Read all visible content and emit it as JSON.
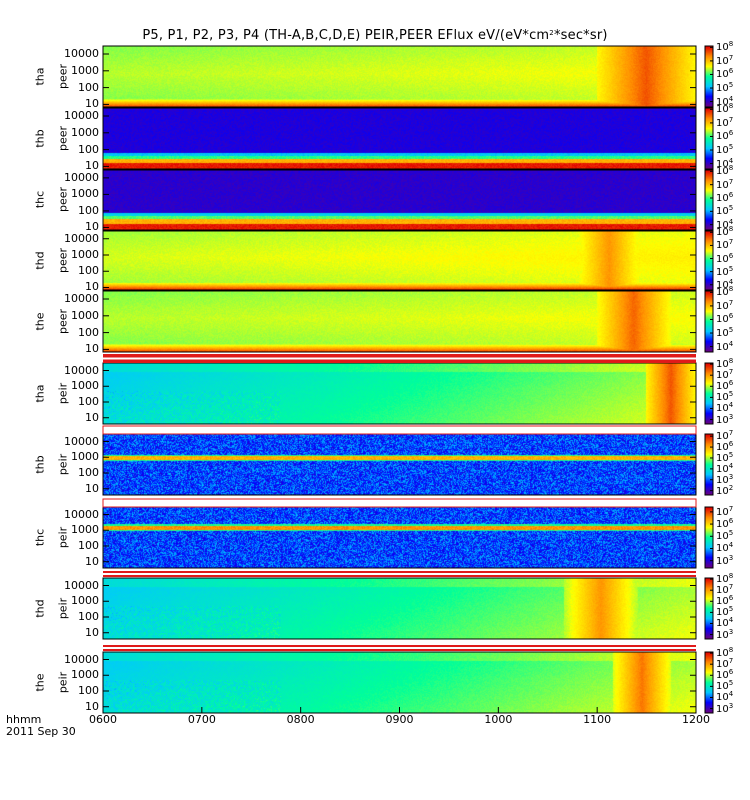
{
  "title": {
    "prefix": "P5, P1, P2, P3, P4 (TH-A,B,C,D,E) PEIR,PEER EFlux eV/(eV*cm",
    "sup": "2",
    "suffix": "*sec*sr)"
  },
  "x_corner": {
    "line1": "hhmm",
    "line2": "2011 Sep 30"
  },
  "colors": {
    "colormap": [
      "#6a0080",
      "#0000ff",
      "#00c8ff",
      "#00ff9a",
      "#ffff00",
      "#ff8c00",
      "#e00000"
    ],
    "separator_red": "#e01a1a"
  },
  "chart_data": {
    "type": "heatmap",
    "x": {
      "label": "hhmm",
      "date": "2011 Sep 30",
      "ticks": [
        "0600",
        "0700",
        "0800",
        "0900",
        "1000",
        "1100",
        "1200"
      ],
      "range": [
        "0600",
        "1200"
      ]
    },
    "y_scale": "log",
    "panels": [
      {
        "probe_label": "tha",
        "instrument_label": "peer",
        "name": "tha peer",
        "y_ticks": [
          "10000",
          "1000",
          "100",
          "10"
        ],
        "y_range": [
          7,
          30000
        ],
        "colorbar_exponents": [
          "8",
          "7",
          "6",
          "5",
          "4"
        ],
        "colorbar_range_log": [
          3.6,
          8.1
        ],
        "pattern": "smooth",
        "base_level": [
          0.62,
          0.47,
          0.27
        ],
        "hot_regions": [
          {
            "start": "1100",
            "end": "1200",
            "level": 0.9
          }
        ]
      },
      {
        "probe_label": "thb",
        "instrument_label": "peer",
        "name": "thb peer",
        "y_ticks": [
          "10000",
          "1000",
          "100",
          "10"
        ],
        "y_range": [
          7,
          30000
        ],
        "colorbar_exponents": [
          "8",
          "7",
          "6",
          "5",
          "4"
        ],
        "colorbar_range_log": [
          3.6,
          8.1
        ],
        "pattern": "bands",
        "bands": [
          {
            "y_low": 7,
            "y_high": 16,
            "level": 0.97
          },
          {
            "y_low": 16,
            "y_high": 28,
            "level": 0.78
          },
          {
            "y_low": 28,
            "y_high": 40,
            "level": 0.52
          },
          {
            "y_low": 40,
            "y_high": 60,
            "level": 0.34
          },
          {
            "y_low": 60,
            "y_high": 30000,
            "level": 0.12
          }
        ]
      },
      {
        "probe_label": "thc",
        "instrument_label": "peer",
        "name": "thc peer",
        "y_ticks": [
          "10000",
          "1000",
          "100",
          "10"
        ],
        "y_range": [
          7,
          30000
        ],
        "colorbar_exponents": [
          "8",
          "7",
          "6",
          "5",
          "4"
        ],
        "colorbar_range_log": [
          3.6,
          8.1
        ],
        "pattern": "bands",
        "bands": [
          {
            "y_low": 7,
            "y_high": 16,
            "level": 0.97
          },
          {
            "y_low": 16,
            "y_high": 30,
            "level": 0.78
          },
          {
            "y_low": 30,
            "y_high": 45,
            "level": 0.55
          },
          {
            "y_low": 45,
            "y_high": 70,
            "level": 0.36
          },
          {
            "y_low": 70,
            "y_high": 30000,
            "level": 0.1
          }
        ]
      },
      {
        "probe_label": "thd",
        "instrument_label": "peer",
        "name": "thd peer",
        "y_ticks": [
          "10000",
          "1000",
          "100",
          "10"
        ],
        "y_range": [
          7,
          30000
        ],
        "colorbar_exponents": [
          "8",
          "7",
          "6",
          "5",
          "4"
        ],
        "colorbar_range_log": [
          3.6,
          8.1
        ],
        "pattern": "smooth",
        "base_level": [
          0.64,
          0.55,
          0.6
        ],
        "hot_regions": [
          {
            "start": "1045",
            "end": "1130",
            "level": 0.82
          }
        ]
      },
      {
        "probe_label": "the",
        "instrument_label": "peer",
        "name": "the peer",
        "y_ticks": [
          "10000",
          "1000",
          "100",
          "10"
        ],
        "y_range": [
          7,
          30000
        ],
        "colorbar_exponents": [
          "8",
          "7",
          "6",
          "5",
          "4"
        ],
        "colorbar_range_log": [
          3.6,
          8.1
        ],
        "pattern": "smooth",
        "base_level": [
          0.62,
          0.55,
          0.55
        ],
        "hot_regions": [
          {
            "start": "1100",
            "end": "1145",
            "level": 0.88
          }
        ]
      },
      {
        "probe_label": "tha",
        "instrument_label": "peir",
        "name": "tha peir",
        "y_ticks": [
          "10000",
          "1000",
          "100",
          "10"
        ],
        "y_range": [
          4,
          30000
        ],
        "colorbar_exponents": [
          "8",
          "7",
          "6",
          "5",
          "4",
          "3"
        ],
        "colorbar_range_log": [
          2.6,
          8.1
        ],
        "pattern": "ions",
        "base_level": [
          0.4,
          0.43,
          0.6
        ],
        "hot_regions": [
          {
            "start": "1130",
            "end": "1200",
            "level": 0.9
          }
        ]
      },
      {
        "probe_label": "thb",
        "instrument_label": "peir",
        "name": "thb peir",
        "y_ticks": [
          "10000",
          "1000",
          "100",
          "10"
        ],
        "y_range": [
          4,
          30000
        ],
        "colorbar_exponents": [
          "7",
          "6",
          "5",
          "4",
          "3",
          "2"
        ],
        "colorbar_range_log": [
          1.6,
          7.2
        ],
        "pattern": "noisy_band",
        "band_center": 900,
        "band_level": 0.78
      },
      {
        "probe_label": "thc",
        "instrument_label": "peir",
        "name": "thc peir",
        "y_ticks": [
          "10000",
          "1000",
          "100",
          "10"
        ],
        "y_range": [
          4,
          30000
        ],
        "colorbar_exponents": [
          "7",
          "6",
          "5",
          "4",
          "3"
        ],
        "colorbar_range_log": [
          2.4,
          7.4
        ],
        "pattern": "noisy_band",
        "band_center": 1500,
        "band_level": 0.82
      },
      {
        "probe_label": "thd",
        "instrument_label": "peir",
        "name": "thd peir",
        "y_ticks": [
          "10000",
          "1000",
          "100",
          "10"
        ],
        "y_range": [
          4,
          30000
        ],
        "colorbar_exponents": [
          "8",
          "7",
          "6",
          "5",
          "4",
          "3"
        ],
        "colorbar_range_log": [
          2.6,
          8.1
        ],
        "pattern": "ions",
        "base_level": [
          0.4,
          0.46,
          0.6
        ],
        "hot_regions": [
          {
            "start": "1040",
            "end": "1125",
            "level": 0.82
          }
        ]
      },
      {
        "probe_label": "the",
        "instrument_label": "peir",
        "name": "the peir",
        "y_ticks": [
          "10000",
          "1000",
          "100",
          "10"
        ],
        "y_range": [
          4,
          30000
        ],
        "colorbar_exponents": [
          "8",
          "7",
          "6",
          "5",
          "4",
          "3"
        ],
        "colorbar_range_log": [
          2.6,
          8.1
        ],
        "pattern": "ions",
        "base_level": [
          0.4,
          0.46,
          0.6
        ],
        "hot_regions": [
          {
            "start": "1110",
            "end": "1145",
            "level": 0.86
          }
        ]
      }
    ]
  }
}
